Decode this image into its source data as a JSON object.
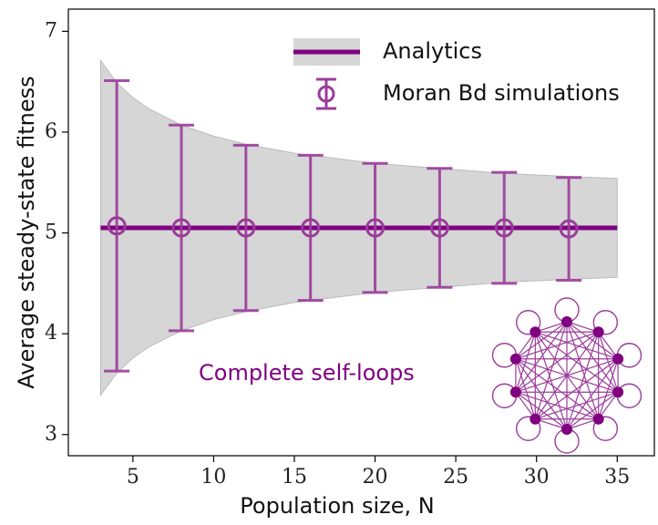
{
  "chart_data": {
    "type": "errorbar",
    "xlabel": "Population size, N",
    "ylabel": "Average steady-state fitness",
    "xlim": [
      1,
      37.3
    ],
    "ylim": [
      2.79,
      7.22
    ],
    "xticks": [
      5,
      10,
      15,
      20,
      25,
      30,
      35
    ],
    "yticks": [
      3,
      4,
      5,
      6,
      7
    ],
    "legend": "upper center",
    "annotation": "Complete self-loops",
    "series": [
      {
        "name": "Analytics",
        "type": "line",
        "color": "#800080",
        "x": [
          3,
          35
        ],
        "values": [
          5.05,
          5.05
        ],
        "band": {
          "color": "#d6d6d6",
          "x": [
            3,
            4,
            5,
            6,
            8,
            10,
            12,
            15,
            18,
            20,
            24,
            28,
            32,
            35
          ],
          "upper": [
            6.71,
            6.49,
            6.34,
            6.23,
            6.07,
            5.96,
            5.88,
            5.79,
            5.73,
            5.69,
            5.64,
            5.59,
            5.56,
            5.54
          ],
          "lower": [
            3.39,
            3.61,
            3.76,
            3.87,
            4.03,
            4.14,
            4.22,
            4.31,
            4.37,
            4.41,
            4.46,
            4.51,
            4.54,
            4.56
          ]
        }
      },
      {
        "name": "Moran Bd simulations",
        "type": "errorbar",
        "color": "#9a3c9a",
        "x": [
          4,
          8,
          12,
          16,
          20,
          24,
          28,
          32
        ],
        "values": [
          5.07,
          5.05,
          5.05,
          5.05,
          5.05,
          5.05,
          5.05,
          5.04
        ],
        "errors": [
          1.44,
          1.02,
          0.82,
          0.72,
          0.64,
          0.59,
          0.55,
          0.51
        ]
      }
    ]
  }
}
